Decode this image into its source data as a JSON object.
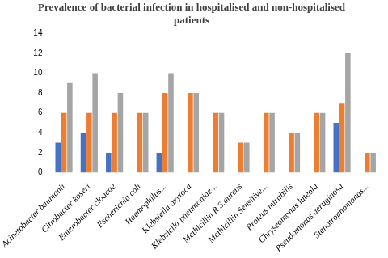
{
  "chart_data": {
    "type": "bar",
    "title": "Prevalence of bacterial infection in hospitalised and non-hospitalised patients",
    "categories": [
      "Acinetobacter baumanii",
      "Citrobacter koseri",
      "Enterobacter cloacae",
      "Escherichia coli",
      "Haemophilus...",
      "Klebsiella oxytoca",
      "Klebsiella pneumoniae...",
      "Methicillin R S.aureus",
      "Methicillin Sensitive...",
      "Proteus mirabilis",
      "Chryseomonas luteola",
      "Pseudomonas aeruginosa",
      "Stenotrophomonas..."
    ],
    "series": [
      {
        "color": "#4472c4",
        "values": [
          3,
          4,
          2,
          0,
          2,
          0,
          0,
          0,
          0,
          0,
          0,
          5,
          0
        ]
      },
      {
        "color": "#ed7d31",
        "values": [
          6,
          6,
          6,
          6,
          8,
          8,
          6,
          3,
          6,
          4,
          6,
          7,
          2
        ]
      },
      {
        "color": "#a5a5a5",
        "values": [
          9,
          10,
          8,
          6,
          10,
          8,
          6,
          3,
          6,
          4,
          6,
          12,
          2
        ]
      }
    ],
    "ylim": [
      0,
      14
    ],
    "yticks": [
      0,
      2,
      4,
      6,
      8,
      10,
      12,
      14
    ],
    "grid": false
  }
}
